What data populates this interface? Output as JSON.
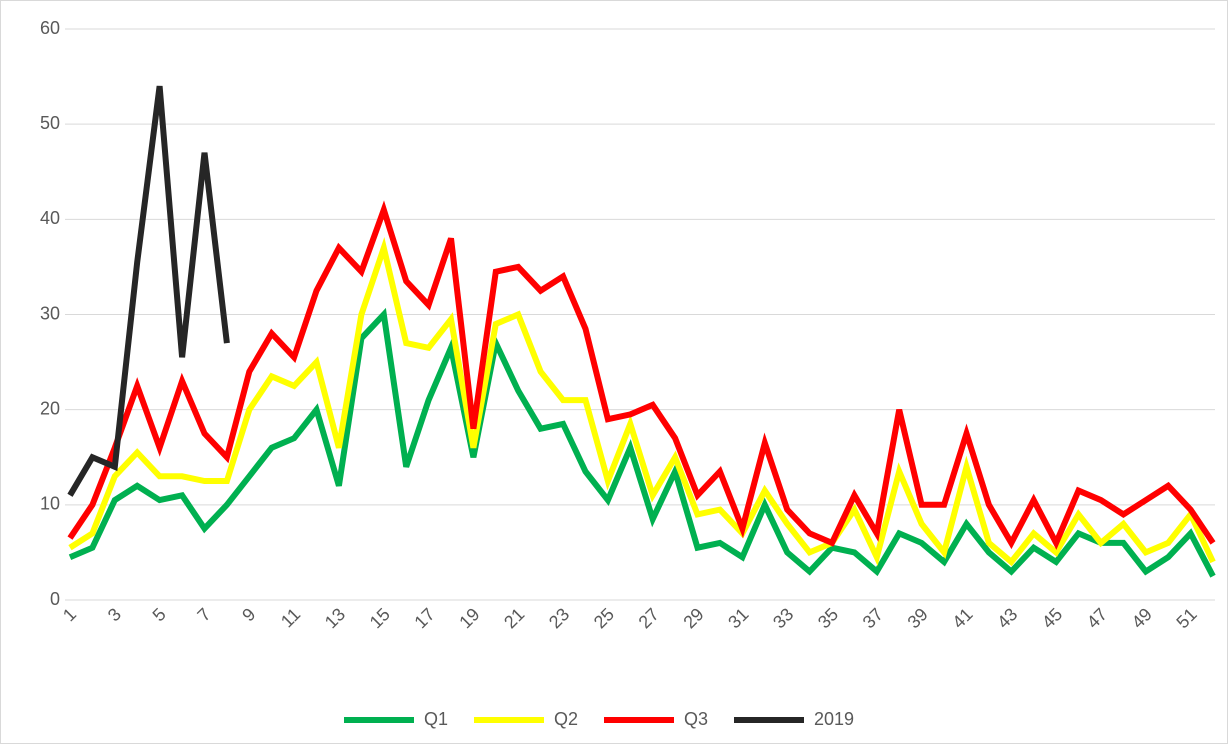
{
  "chart_data": {
    "type": "line",
    "categories": [
      "1",
      null,
      "3",
      null,
      "5",
      null,
      "7",
      null,
      "9",
      null,
      "11",
      null,
      "13",
      null,
      "15",
      null,
      "17",
      null,
      "19",
      null,
      "21",
      null,
      "23",
      null,
      "25",
      null,
      "27",
      null,
      "29",
      null,
      "31",
      null,
      "33",
      null,
      "35",
      null,
      "37",
      null,
      "39",
      null,
      "41",
      null,
      "43",
      null,
      "45",
      null,
      "47",
      null,
      "49",
      null,
      "51",
      null
    ],
    "series": [
      {
        "name": "Q1",
        "color": "#00b050",
        "values": [
          4.5,
          5.5,
          10.5,
          12,
          10.5,
          11,
          7.5,
          10,
          13,
          16,
          17,
          20,
          12,
          27.5,
          30,
          14,
          21,
          26.5,
          15,
          27,
          22,
          18,
          18.5,
          13.5,
          10.5,
          16,
          8.5,
          13.5,
          5.5,
          6,
          4.5,
          10,
          5,
          3,
          5.5,
          5,
          3,
          7,
          6,
          4,
          8,
          5,
          3,
          5.5,
          4,
          7,
          6,
          6,
          3,
          4.5,
          7,
          2.5
        ]
      },
      {
        "name": "Q2",
        "color": "#ffff00",
        "values": [
          5.5,
          7,
          13,
          15.5,
          13,
          13,
          12.5,
          12.5,
          20,
          23.5,
          22.5,
          25,
          16,
          30,
          37,
          27,
          26.5,
          29.5,
          16,
          29,
          30,
          24,
          21,
          21,
          12.5,
          18.5,
          11,
          15,
          9,
          9.5,
          7,
          11.5,
          8,
          5,
          6,
          9.5,
          4.5,
          13.5,
          8,
          5,
          14,
          6,
          4,
          7,
          5,
          9,
          6,
          8,
          5,
          6,
          9,
          4
        ]
      },
      {
        "name": "Q3",
        "color": "#ff0000",
        "values": [
          6.5,
          10,
          16,
          22.5,
          16,
          23,
          17.5,
          15,
          24,
          28,
          25.5,
          32.5,
          37,
          34.5,
          41,
          33.5,
          31,
          38,
          18,
          34.5,
          35,
          32.5,
          34,
          28.5,
          19,
          19.5,
          20.5,
          17,
          11,
          13.5,
          7.5,
          16.5,
          9.5,
          7,
          6,
          11,
          7,
          20,
          10,
          10,
          17.5,
          10,
          6,
          10.5,
          6,
          11.5,
          10.5,
          9,
          10.5,
          12,
          9.5,
          6
        ]
      },
      {
        "name": "2019",
        "color": "#262626",
        "values": [
          11,
          15,
          14,
          35.5,
          54,
          25.5,
          47,
          27,
          null,
          null,
          null,
          null,
          null,
          null,
          null,
          null,
          null,
          null,
          null,
          null,
          null,
          null,
          null,
          null,
          null,
          null,
          null,
          null,
          null,
          null,
          null,
          null,
          null,
          null,
          null,
          null,
          null,
          null,
          null,
          null,
          null,
          null,
          null,
          null,
          null,
          null,
          null,
          null,
          null,
          null,
          null,
          null
        ]
      }
    ],
    "ylim": [
      0,
      60
    ],
    "yticks": [
      0,
      10,
      20,
      30,
      40,
      50,
      60
    ],
    "grid": true,
    "legend": "bottom"
  }
}
